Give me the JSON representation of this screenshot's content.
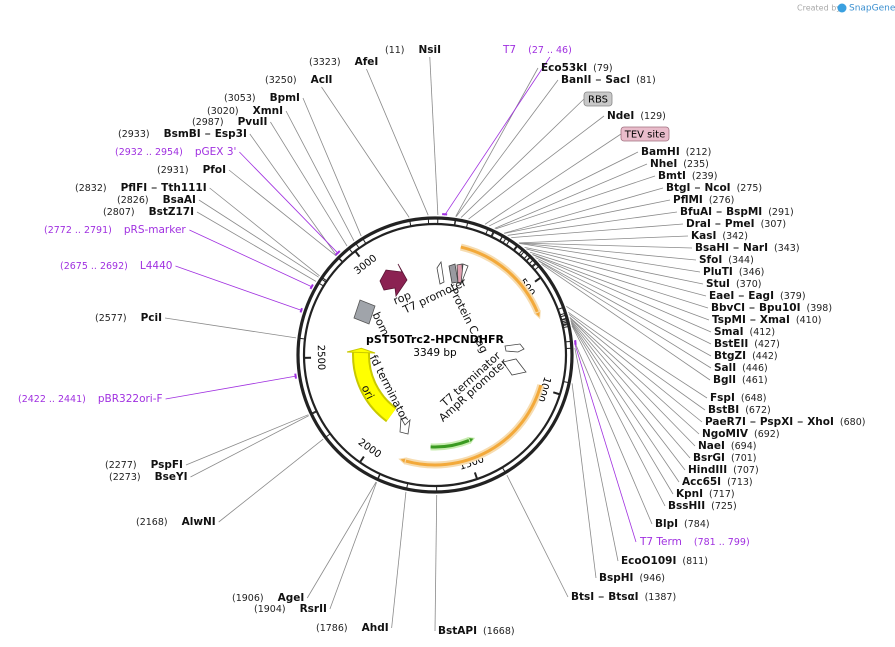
{
  "branding": {
    "created_by": "Created by",
    "logo": "SnapGene"
  },
  "plasmid": {
    "name": "pST50Trc2-HPCNDHFR",
    "size": {
      "bp": 3349,
      "label": "3349 bp"
    }
  },
  "ring_ticks": [
    500,
    1000,
    1500,
    2000,
    2500,
    3000
  ],
  "enzymes": [
    {
      "names": [
        "NsiI"
      ],
      "site": 11,
      "site_label": "(11)"
    },
    {
      "names": [
        "AfeI"
      ],
      "site": 3323,
      "site_label": "(3323)"
    },
    {
      "names": [
        "AclI"
      ],
      "site": 3250,
      "site_label": "(3250)"
    },
    {
      "names": [
        "BpmI"
      ],
      "site": 3053,
      "site_label": "(3053)"
    },
    {
      "names": [
        "XmnI"
      ],
      "site": 3020,
      "site_label": "(3020)"
    },
    {
      "names": [
        "PvuII"
      ],
      "site": 2987,
      "site_label": "(2987)"
    },
    {
      "names": [
        "BsmBI",
        "Esp3I"
      ],
      "site": 2933,
      "site_label": "(2933)"
    },
    {
      "names": [
        "PfoI"
      ],
      "site": 2931,
      "site_label": "(2931)"
    },
    {
      "names": [
        "PflFI",
        "Tth111I"
      ],
      "site": 2832,
      "site_label": "(2832)"
    },
    {
      "names": [
        "BsaAI"
      ],
      "site": 2826,
      "site_label": "(2826)"
    },
    {
      "names": [
        "BstZ17I"
      ],
      "site": 2807,
      "site_label": "(2807)"
    },
    {
      "names": [
        "PciI"
      ],
      "site": 2577,
      "site_label": "(2577)"
    },
    {
      "names": [
        "PspFI"
      ],
      "site": 2277,
      "site_label": "(2277)"
    },
    {
      "names": [
        "BseYI"
      ],
      "site": 2273,
      "site_label": "(2273)"
    },
    {
      "names": [
        "AlwNI"
      ],
      "site": 2168,
      "site_label": "(2168)"
    },
    {
      "names": [
        "AgeI"
      ],
      "site": 1906,
      "site_label": "(1906)"
    },
    {
      "names": [
        "RsrII"
      ],
      "site": 1904,
      "site_label": "(1904)"
    },
    {
      "names": [
        "AhdI"
      ],
      "site": 1786,
      "site_label": "(1786)"
    },
    {
      "names": [
        "BstAPI"
      ],
      "site": 1668,
      "site_label": "(1668)"
    },
    {
      "names": [
        "BtsI",
        "BtsαI"
      ],
      "site": 1387,
      "site_label": "(1387)"
    },
    {
      "names": [
        "BspHI"
      ],
      "site": 946,
      "site_label": "(946)"
    },
    {
      "names": [
        "EcoO109I"
      ],
      "site": 811,
      "site_label": "(811)"
    },
    {
      "names": [
        "BlpI"
      ],
      "site": 784,
      "site_label": "(784)"
    },
    {
      "names": [
        "BssHII"
      ],
      "site": 725,
      "site_label": "(725)"
    },
    {
      "names": [
        "KpnI"
      ],
      "site": 717,
      "site_label": "(717)"
    },
    {
      "names": [
        "Acc65I"
      ],
      "site": 713,
      "site_label": "(713)"
    },
    {
      "names": [
        "HindIII"
      ],
      "site": 707,
      "site_label": "(707)"
    },
    {
      "names": [
        "BsrGI"
      ],
      "site": 701,
      "site_label": "(701)"
    },
    {
      "names": [
        "NaeI"
      ],
      "site": 694,
      "site_label": "(694)"
    },
    {
      "names": [
        "NgoMIV"
      ],
      "site": 692,
      "site_label": "(692)"
    },
    {
      "names": [
        "PaeR7I",
        "PspXI",
        "XhoI"
      ],
      "site": 680,
      "site_label": "(680)"
    },
    {
      "names": [
        "BstBI"
      ],
      "site": 672,
      "site_label": "(672)"
    },
    {
      "names": [
        "FspI"
      ],
      "site": 648,
      "site_label": "(648)"
    },
    {
      "names": [
        "BglI"
      ],
      "site": 461,
      "site_label": "(461)"
    },
    {
      "names": [
        "SalI"
      ],
      "site": 446,
      "site_label": "(446)"
    },
    {
      "names": [
        "BtgZI"
      ],
      "site": 442,
      "site_label": "(442)"
    },
    {
      "names": [
        "BstEII"
      ],
      "site": 427,
      "site_label": "(427)"
    },
    {
      "names": [
        "SmaI"
      ],
      "site": 412,
      "site_label": "(412)"
    },
    {
      "names": [
        "TspMI",
        "XmaI"
      ],
      "site": 410,
      "site_label": "(410)"
    },
    {
      "names": [
        "BbvCI",
        "Bpu10I"
      ],
      "site": 398,
      "site_label": "(398)"
    },
    {
      "names": [
        "EaeI",
        "EagI"
      ],
      "site": 379,
      "site_label": "(379)"
    },
    {
      "names": [
        "StuI"
      ],
      "site": 370,
      "site_label": "(370)"
    },
    {
      "names": [
        "PluTI"
      ],
      "site": 346,
      "site_label": "(346)"
    },
    {
      "names": [
        "SfoI"
      ],
      "site": 344,
      "site_label": "(344)"
    },
    {
      "names": [
        "BsaHI",
        "NarI"
      ],
      "site": 343,
      "site_label": "(343)"
    },
    {
      "names": [
        "KasI"
      ],
      "site": 342,
      "site_label": "(342)"
    },
    {
      "names": [
        "DraI",
        "PmeI"
      ],
      "site": 307,
      "site_label": "(307)"
    },
    {
      "names": [
        "BfuAI",
        "BspMI"
      ],
      "site": 291,
      "site_label": "(291)"
    },
    {
      "names": [
        "PflMI"
      ],
      "site": 276,
      "site_label": "(276)"
    },
    {
      "names": [
        "BtgI",
        "NcoI"
      ],
      "site": 275,
      "site_label": "(275)"
    },
    {
      "names": [
        "BmtI"
      ],
      "site": 239,
      "site_label": "(239)"
    },
    {
      "names": [
        "NheI"
      ],
      "site": 235,
      "site_label": "(235)"
    },
    {
      "names": [
        "BamHI"
      ],
      "site": 212,
      "site_label": "(212)"
    },
    {
      "names": [
        "NdeI"
      ],
      "site": 129,
      "site_label": "(129)"
    },
    {
      "names": [
        "BanII",
        "SacI"
      ],
      "site": 81,
      "site_label": "(81)"
    },
    {
      "names": [
        "Eco53kI"
      ],
      "site": 79,
      "site_label": "(79)"
    }
  ],
  "primers": [
    {
      "name": "T7",
      "start": 27,
      "end": 46,
      "range_label": "(27 .. 46)"
    },
    {
      "name": "pGEX 3'",
      "start": 2932,
      "end": 2954,
      "range_label": "(2932 .. 2954)"
    },
    {
      "name": "pRS-marker",
      "start": 2772,
      "end": 2791,
      "range_label": "(2772 .. 2791)"
    },
    {
      "name": "L4440",
      "start": 2675,
      "end": 2692,
      "range_label": "(2675 .. 2692)"
    },
    {
      "name": "pBR322ori-F",
      "start": 2422,
      "end": 2441,
      "range_label": "(2422 .. 2441)"
    },
    {
      "name": "T7 Term",
      "start": 781,
      "end": 799,
      "range_label": "(781 .. 799)"
    }
  ],
  "site_boxes": [
    "RBS",
    "TEV site"
  ],
  "features": [
    "Protein C tag",
    "T7 promoter",
    "rop",
    "bom",
    "fd terminator",
    "ori",
    "T7 terminator",
    "AmpR promoter"
  ]
}
